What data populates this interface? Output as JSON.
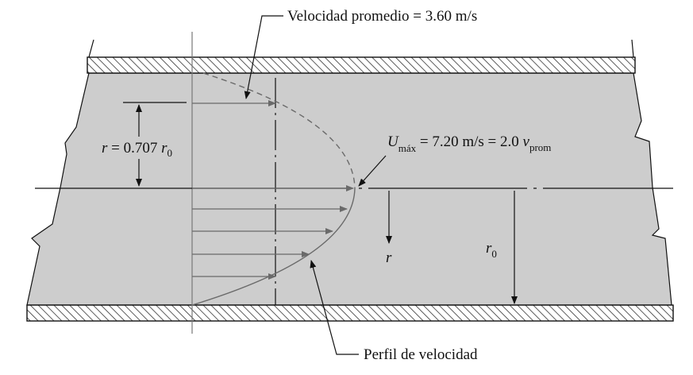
{
  "labels": {
    "avg_velocity": "Velocidad promedio = 3.60 m/s",
    "r_prefix": "r",
    "r_equals": " = 0.707 ",
    "r0_symbol": "r",
    "r0_sub": "0",
    "umax_symbol": "U",
    "umax_sub": "máx",
    "umax_value": " = 7.20 m/s = 2.0 ",
    "vprom_symbol": "v",
    "vprom_sub": "prom",
    "r_axis": "r",
    "r0_axis_symbol": "r",
    "r0_axis_sub": "0",
    "profile": "Perfil de velocidad"
  },
  "colors": {
    "fluid": "#cdcdcd",
    "wall_hatch": "#333333",
    "profile_curve": "#6a6a6a",
    "arrows": "#6a6a6a",
    "lines": "#111111"
  }
}
